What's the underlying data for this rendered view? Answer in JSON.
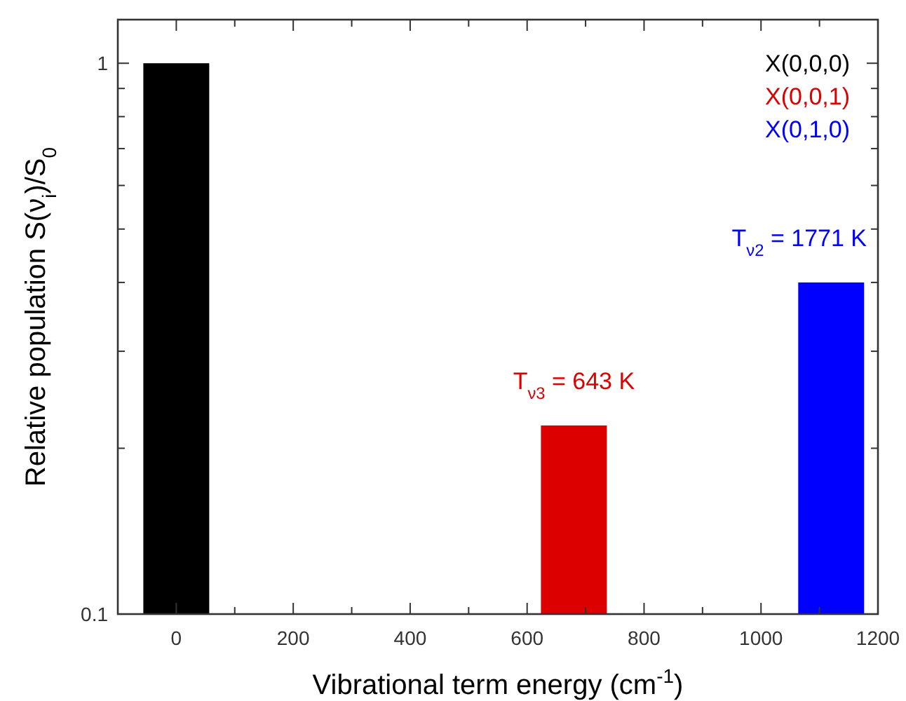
{
  "chart_data": {
    "type": "bar",
    "xlabel": "Vibrational term energy (cm$^{-1}$)",
    "ylabel": "Relative population S(ν$_{i}$)/S$_{0}$",
    "log": true,
    "legend": "top right",
    "xlim": [
      -100,
      1200
    ],
    "xticks": [
      0,
      {
        "value": 100,
        "label": null
      },
      200,
      {
        "value": 300,
        "label": null
      },
      400,
      {
        "value": 500,
        "label": null
      },
      600,
      {
        "value": 700,
        "label": null
      },
      800,
      {
        "value": 900,
        "label": null
      },
      1000,
      {
        "value": 1100,
        "label": null
      },
      1200
    ],
    "ylim": [
      0.1,
      1.2
    ],
    "yticks": [
      0.1,
      {
        "value": 0.2,
        "label": null
      },
      {
        "value": 0.3,
        "label": null
      },
      {
        "value": 0.4,
        "label": null
      },
      {
        "value": 0.5,
        "label": null
      },
      {
        "value": 0.6,
        "label": null
      },
      {
        "value": 0.7,
        "label": null
      },
      {
        "value": 0.8,
        "label": null
      },
      {
        "value": 0.9,
        "label": null
      },
      1
    ],
    "series": [
      {
        "name": "X(0,0,0)",
        "color": "#000000",
        "x": [
          0
        ],
        "values": [
          1
        ]
      },
      {
        "name": "X(0,0,1)",
        "color": "#dd0000",
        "x": [
          680
        ],
        "values": [
          0.22
        ]
      },
      {
        "name": "X(0,1,0)",
        "color": "#0000ff",
        "x": [
          1120
        ],
        "values": [
          0.4
        ]
      }
    ],
    "annotations": [
      {
        "text": "T$_{ν3}$ = 643 K",
        "x": 680,
        "y": 0.22
      },
      {
        "text": "T$_{ν2}$ = 1771 K",
        "x": 1120,
        "y": 0.4
      }
    ]
  }
}
